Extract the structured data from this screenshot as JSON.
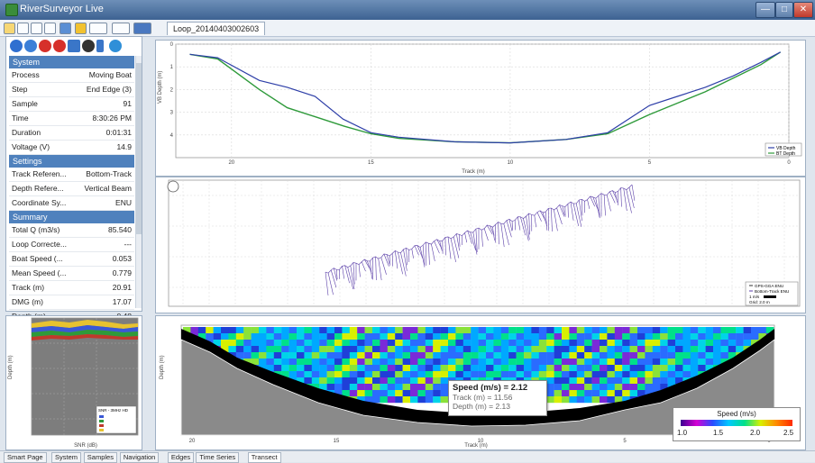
{
  "app": {
    "title": "RiverSurveyor Live"
  },
  "window_buttons": {
    "minimize": "—",
    "maximize": "□",
    "close": "✕"
  },
  "document_tab": {
    "label": "Loop_20140403002603"
  },
  "system_table": {
    "sections": [
      {
        "title": "System",
        "rows": [
          {
            "label": "Process",
            "value": "Moving Boat"
          },
          {
            "label": "Step",
            "value": "End Edge (3)"
          },
          {
            "label": "Sample",
            "value": "91"
          },
          {
            "label": "Time",
            "value": "8:30:26 PM"
          },
          {
            "label": "Duration",
            "value": "0:01:31"
          },
          {
            "label": "Voltage (V)",
            "value": "14.9"
          }
        ]
      },
      {
        "title": "Settings",
        "rows": [
          {
            "label": "Track Referen...",
            "value": "Bottom-Track"
          },
          {
            "label": "Depth Refere...",
            "value": "Vertical Beam"
          },
          {
            "label": "Coordinate Sy...",
            "value": "ENU"
          }
        ]
      },
      {
        "title": "Summary",
        "rows": [
          {
            "label": "Total Q (m3/s)",
            "value": "85.540"
          },
          {
            "label": "Loop Correcte...",
            "value": "---"
          },
          {
            "label": "Boat Speed (...",
            "value": "0.053"
          },
          {
            "label": "Mean Speed (...",
            "value": "0.779"
          },
          {
            "label": "Track (m)",
            "value": "20.91"
          },
          {
            "label": "DMG (m)",
            "value": "17.07"
          },
          {
            "label": "Depth (m)",
            "value": "0.48"
          }
        ]
      }
    ]
  },
  "depth_chart": {
    "ylabel": "VB Depth (m)",
    "xlabel": "Track (m)",
    "legend": [
      "VB Depth",
      "BT Depth"
    ],
    "colors": {
      "vb": "#2e3fa8",
      "bt": "#2e9a3a"
    }
  },
  "track_chart": {
    "legend": [
      "GPS-GGA ENU",
      "Bottom-Track ENU",
      "1 m/s",
      "Grid: 2.0 m"
    ],
    "color": "#5a3ea8"
  },
  "contour_chart": {
    "ylabel": "Depth (m)",
    "xlabel": "Track (m)",
    "colorbar_title": "Speed (m/s)",
    "colorbar_ticks": [
      "1.0",
      "1.5",
      "2.0",
      "2.5"
    ]
  },
  "small_chart": {
    "ylabel": "Depth (m)",
    "xlabel": "SNR (dB)",
    "legend_title": "SNR - 3MHz HD"
  },
  "tooltip": {
    "speed": "Speed (m/s) = 2.12",
    "track": "Track (m) = 11.56",
    "depth": "Depth (m) = 2.13"
  },
  "chart_data": [
    {
      "type": "line",
      "ylabel": "VB Depth (m)",
      "xlabel": "Track (m)",
      "xlim": [
        22,
        0
      ],
      "ylim": [
        5,
        0
      ],
      "x_ticks": [
        "20",
        "15",
        "10",
        "5",
        "0"
      ],
      "y_ticks": [
        "0",
        "1",
        "2",
        "3",
        "4"
      ],
      "series": [
        {
          "name": "VB Depth",
          "x": [
            21.5,
            20.5,
            19,
            18,
            17,
            16,
            15,
            14,
            12,
            10,
            8,
            6.5,
            5,
            4,
            3,
            2,
            1,
            0.3
          ],
          "values": [
            0.45,
            0.6,
            1.6,
            1.9,
            2.3,
            3.3,
            3.9,
            4.1,
            4.3,
            4.35,
            4.2,
            3.9,
            2.7,
            2.3,
            1.9,
            1.4,
            0.8,
            0.35
          ]
        },
        {
          "name": "BT Depth",
          "x": [
            21.5,
            20.5,
            19,
            18,
            17,
            16,
            15,
            14,
            12,
            10,
            8,
            6.5,
            5,
            4,
            3,
            2,
            1,
            0.3
          ],
          "values": [
            0.45,
            0.65,
            2.0,
            2.8,
            3.2,
            3.6,
            3.95,
            4.15,
            4.3,
            4.35,
            4.2,
            3.95,
            3.1,
            2.6,
            2.1,
            1.5,
            0.9,
            0.35
          ]
        }
      ]
    }
  ]
}
